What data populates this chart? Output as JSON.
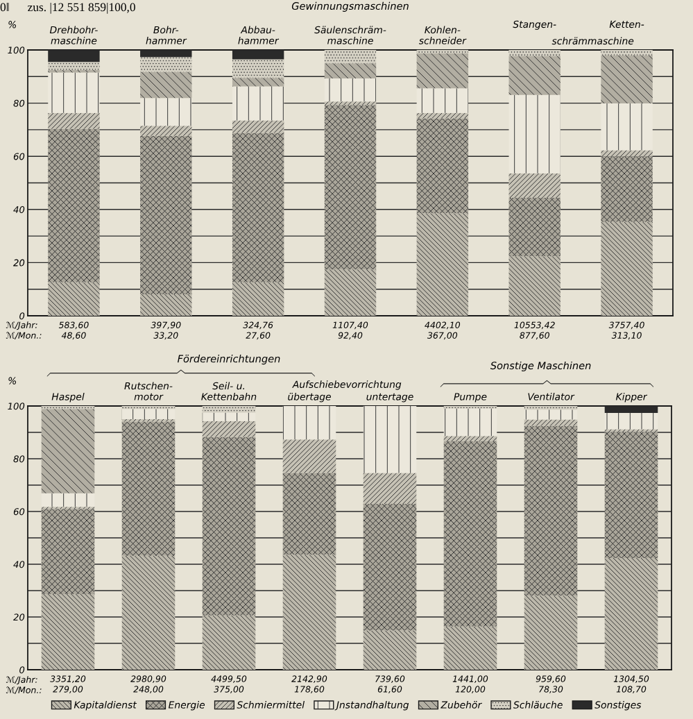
{
  "chart_data": [
    {
      "type": "bar",
      "stacked": true,
      "title": "Gewinnungsmaschinen",
      "ylabel": "%",
      "categories": [
        "Drehbohr-\nmaschine",
        "Bohr-\nhammer",
        "Abbau-\nhammer",
        "Säulenschräm-\nmaschine",
        "Kohlen-\nschneider",
        "Stangen-",
        "Ketten-"
      ],
      "series": [
        {
          "name": "Kapitaldienst",
          "color": "#bcb8ab",
          "values": [
            12.6,
            8.1,
            12.6,
            17.4,
            38.6,
            22.4,
            35.3
          ]
        },
        {
          "name": "Energie",
          "color": "#aaa69a",
          "values": [
            57.7,
            59.6,
            56.2,
            61.9,
            35.7,
            22.0,
            24.6
          ]
        },
        {
          "name": "Schmiermittel",
          "color": "#c6c2b5",
          "values": [
            6.0,
            3.8,
            4.7,
            1.3,
            2.0,
            9.2,
            2.4
          ]
        },
        {
          "name": "Jnstandhaltung",
          "color": "#ece8dc",
          "values": [
            15.2,
            10.4,
            12.8,
            8.7,
            9.3,
            29.5,
            17.6
          ]
        },
        {
          "name": "Zubehör",
          "color": "#b2aea2",
          "values": [
            1.0,
            9.9,
            3.2,
            5.7,
            13.1,
            14.7,
            18.1
          ]
        },
        {
          "name": "Schläuche",
          "color": "#d4d0c3",
          "values": [
            3.0,
            5.5,
            7.0,
            5.0,
            1.3,
            2.2,
            2.0
          ]
        },
        {
          "name": "Sonstiges",
          "color": "#2a2a2a",
          "values": [
            4.5,
            2.7,
            3.5,
            0,
            0,
            0,
            0
          ]
        }
      ],
      "ylim": [
        0,
        100
      ],
      "yticks": [
        0,
        {
          "value": 10,
          "label": null
        },
        20,
        {
          "value": 30,
          "label": null
        },
        40,
        {
          "value": 50,
          "label": null
        },
        60,
        {
          "value": 70,
          "label": null
        },
        80,
        {
          "value": 90,
          "label": null
        },
        100
      ],
      "grid": "y",
      "annotations": [
        "0‖      zus. |12 551 859|100,0",
        "schrämmaschine",
        "ℳ/Jahr:\nℳ/Mon.:",
        "583,60\n48,60",
        "397,90\n33,20",
        "324,76\n27,60",
        "1107,40\n92,40",
        "4402,10\n367,00",
        "10553,42\n877,60",
        "3757,40\n313,10"
      ],
      "legend": "bottom"
    },
    {
      "type": "bar",
      "stacked": true,
      "ylabel": "%",
      "categories": [
        "Haspel",
        "Rutschen-\nmotor",
        "Seil- u.\nKettenbahn",
        "übertage",
        "untertage",
        "Pumpe",
        "Ventilator",
        "Kipper"
      ],
      "series": [
        {
          "name": "Kapitaldienst",
          "color": "#bcb8ab",
          "values": [
            28.7,
            43.2,
            20.6,
            43.6,
            14.9,
            16.4,
            28.1,
            42.4
          ]
        },
        {
          "name": "Energie",
          "color": "#aaa69a",
          "values": [
            32.3,
            50.9,
            67.7,
            31.0,
            48.0,
            70.2,
            64.4,
            47.7
          ]
        },
        {
          "name": "Schmiermittel",
          "color": "#c6c2b5",
          "values": [
            0.8,
            0.9,
            6.0,
            12.7,
            11.7,
            2.0,
            2.4,
            1.1
          ]
        },
        {
          "name": "Jnstandhaltung",
          "color": "#ece8dc",
          "values": [
            5.1,
            3.9,
            3.2,
            12.7,
            25.4,
            10.5,
            3.7,
            6.2
          ]
        },
        {
          "name": "Zubehör",
          "color": "#b2aea2",
          "values": [
            32.0,
            0,
            0,
            0,
            0,
            0,
            0,
            0
          ]
        },
        {
          "name": "Schläuche",
          "color": "#d4d0c3",
          "values": [
            1.1,
            1.1,
            2.5,
            0,
            0,
            0.9,
            1.4,
            0
          ]
        },
        {
          "name": "Sonstiges",
          "color": "#2a2a2a",
          "values": [
            0,
            0,
            0,
            0,
            0,
            0,
            0,
            2.6
          ]
        }
      ],
      "ylim": [
        0,
        100
      ],
      "yticks": [
        0,
        {
          "value": 10,
          "label": null
        },
        20,
        {
          "value": 30,
          "label": null
        },
        40,
        {
          "value": 50,
          "label": null
        },
        60,
        {
          "value": 70,
          "label": null
        },
        80,
        {
          "value": 90,
          "label": null
        },
        100
      ],
      "grid": "y",
      "legend": "bottom",
      "annotations": [
        "Fördereinrichtungen",
        "Aufschiebevorrichtung",
        "Sonstige Maschinen",
        "ℳ/Jahr:\nℳ/Mon.:",
        "3351,20\n279,00",
        "2980,90\n248,00",
        "4499,50\n375,00",
        "2142,90\n178,60",
        "739,60\n61,60",
        "1441,00\n120,00",
        "959,60\n78,30",
        "1304,50\n108,70"
      ]
    }
  ]
}
